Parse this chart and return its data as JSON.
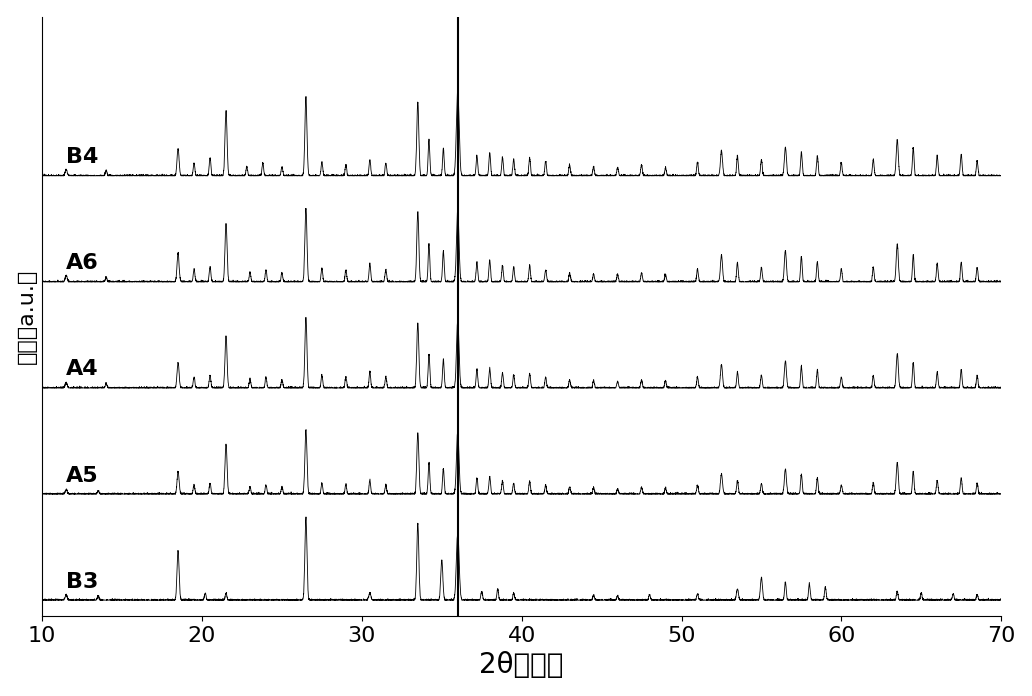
{
  "title": "",
  "xlabel": "2θ（度）",
  "ylabel": "强度（a.u.）",
  "xlim": [
    10,
    70
  ],
  "x_ticks": [
    10,
    20,
    30,
    40,
    50,
    60,
    70
  ],
  "labels": [
    "B3",
    "A5",
    "A4",
    "A6",
    "B4"
  ],
  "vline_x": 36.0,
  "offsets": [
    0,
    1.0,
    2.0,
    3.0,
    4.0
  ],
  "background_color": "#ffffff",
  "line_color": "#000000",
  "vline_color": "#000000",
  "xlabel_fontsize": 20,
  "ylabel_fontsize": 16,
  "tick_fontsize": 16,
  "label_fontsize": 16
}
